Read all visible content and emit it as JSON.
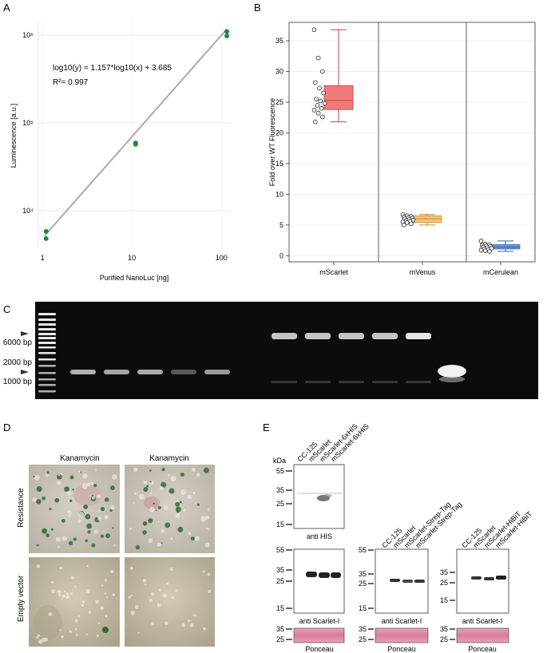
{
  "panels": {
    "a": {
      "letter": "A",
      "ylabel": "Luminescence [a.u.]",
      "xlabel": "Purified NanoLuc [ng]",
      "equation": "log10(y) = 1.157*log10(x) + 3.685",
      "r2": "R²= 0.997",
      "yticks": [
        {
          "label": "10⁶",
          "value": 1000000
        },
        {
          "label": "10⁵",
          "value": 100000
        },
        {
          "label": "10⁴",
          "value": 10000
        }
      ],
      "xticks": [
        {
          "label": "1",
          "value": 1
        },
        {
          "label": "10",
          "value": 10
        },
        {
          "label": "100",
          "value": 100
        }
      ]
    },
    "b": {
      "letter": "B",
      "ylabel": "Fold over WT Fluorescence",
      "yticks": [
        "0",
        "5",
        "10",
        "15",
        "20",
        "25",
        "30",
        "35"
      ],
      "groups": [
        "mScarlet",
        "mVenus",
        "mCerulean"
      ]
    },
    "c": {
      "letter": "C",
      "ladder_labels": [
        "6000 bp",
        "2000 bp",
        "1000 bp"
      ]
    },
    "d": {
      "letter": "D",
      "col_labels": [
        "Kanamycin",
        "Kanamycin"
      ],
      "row_labels": [
        "Resistance",
        "Empty vector"
      ]
    },
    "e": {
      "letter": "E",
      "kda": "kDa",
      "blot1": {
        "lanes": [
          "CC-125",
          "mScarlet",
          "mScarlet-6xHIS",
          "mScarlet-6xHIS"
        ],
        "markers_top": [
          "55",
          "35",
          "25",
          "15"
        ],
        "label_top": "anti HIS",
        "markers_mid": [
          "55",
          "35",
          "25",
          "15"
        ],
        "label_mid": "anti Scarlet-I",
        "markers_bot": [
          "35",
          "25"
        ],
        "label_bot": "Ponceau"
      },
      "blot2": {
        "lanes": [
          "CC-125",
          "mScarlet",
          "mScarlet-Strep-Tag",
          "mScarlet-Strep-Tag"
        ],
        "markers_mid": [
          "55",
          "35",
          "25",
          "15"
        ],
        "label_mid": "anti Scarlet-I",
        "markers_bot": [
          "35",
          "25"
        ],
        "label_bot": "Ponceau"
      },
      "blot3": {
        "lanes": [
          "CC-125",
          "mScarlet",
          "mScarlet-HiBiT",
          "mScarlet-HiBiT"
        ],
        "markers_mid": [
          "35",
          "25",
          "15"
        ],
        "label_mid": "anti Scarlet-I",
        "markers_bot": [
          "35",
          "25"
        ],
        "label_bot": "Ponceau"
      }
    }
  },
  "chart_data": [
    {
      "type": "scatter",
      "xlabel": "Purified NanoLuc [ng]",
      "ylabel": "Luminescence [a.u.]",
      "x_scale": "log",
      "y_scale": "log",
      "xlim": [
        0.9,
        130
      ],
      "ylim": [
        3800,
        1400000
      ],
      "fit": {
        "slope": 1.157,
        "intercept": 3.685
      },
      "points": [
        [
          1.1,
          5800
        ],
        [
          1.1,
          4800
        ],
        [
          11,
          59000
        ],
        [
          11,
          57000
        ],
        [
          115,
          1100000
        ],
        [
          115,
          980000
        ]
      ],
      "point_color": "#1f8a3c",
      "line_color": "#aaaaaa",
      "grid": true
    },
    {
      "type": "box",
      "ylabel": "Fold over WT Fluorescence",
      "ylim": [
        -1,
        38
      ],
      "categories": [
        "mScarlet",
        "mVenus",
        "mCerulean"
      ],
      "boxes": [
        {
          "name": "mScarlet",
          "min": 21.8,
          "q1": 23.8,
          "median": 25.3,
          "q3": 27.7,
          "max": 36.8,
          "fill": "#ef7a78",
          "edge": "#c9403d",
          "points": [
            36.8,
            32.2,
            30.0,
            28.2,
            27.3,
            26.5,
            25.5,
            25.2,
            24.8,
            24.5,
            24.0,
            23.7,
            23.2,
            22.6,
            21.8
          ]
        },
        {
          "name": "mVenus",
          "min": 5.0,
          "q1": 5.4,
          "median": 6.0,
          "q3": 6.5,
          "max": 6.7,
          "fill": "#f4c57a",
          "edge": "#c58a2a",
          "points": [
            6.7,
            6.5,
            6.4,
            6.3,
            6.2,
            6.1,
            6.0,
            5.9,
            5.8,
            5.7,
            5.6,
            5.5,
            5.4,
            5.2,
            5.0
          ]
        },
        {
          "name": "mCerulean",
          "min": 0.7,
          "q1": 1.1,
          "median": 1.4,
          "q3": 1.8,
          "max": 2.4,
          "fill": "#6f9ad8",
          "edge": "#2f5fb0",
          "points": [
            2.4,
            1.9,
            1.8,
            1.7,
            1.6,
            1.5,
            1.4,
            1.3,
            1.2,
            1.1,
            1.0,
            0.9,
            0.8,
            0.7
          ]
        }
      ]
    }
  ]
}
